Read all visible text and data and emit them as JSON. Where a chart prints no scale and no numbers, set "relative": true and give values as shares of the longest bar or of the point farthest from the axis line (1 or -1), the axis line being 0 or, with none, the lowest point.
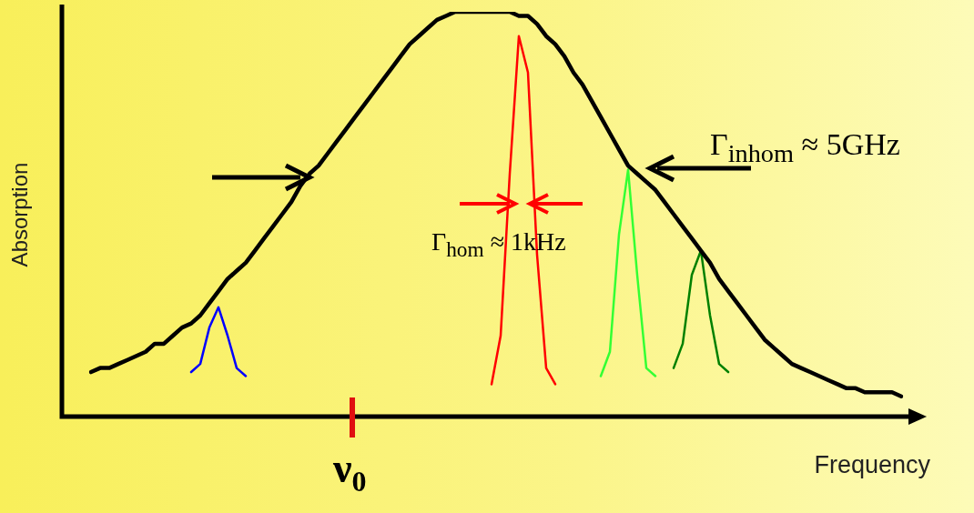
{
  "chart_data": {
    "type": "line",
    "relative": true,
    "xlabel": "Frequency",
    "ylabel": "Absorption",
    "categories": [
      null,
      null,
      null,
      null,
      null,
      null,
      null,
      null,
      null,
      null,
      null,
      null,
      null,
      null,
      null,
      null,
      null,
      null,
      null,
      null,
      null,
      null,
      null,
      null,
      null,
      null,
      null,
      null,
      null,
      null,
      null,
      null,
      null,
      null,
      null,
      null,
      null,
      null,
      null,
      null,
      null,
      null,
      null,
      null,
      null,
      null,
      null,
      null,
      null,
      null,
      null,
      null,
      null,
      null,
      null,
      null,
      null,
      null,
      null,
      null,
      null,
      null,
      null,
      null,
      null,
      null,
      null,
      null,
      null,
      null,
      null,
      null,
      null,
      null,
      null,
      null,
      null,
      null,
      null,
      null,
      null,
      null,
      null,
      null,
      null,
      null,
      null,
      null,
      null,
      null
    ],
    "series": [
      {
        "color": "#000000",
        "values": [
          0.11,
          0.12,
          0.12,
          0.13,
          0.14,
          0.15,
          0.16,
          0.18,
          0.18,
          0.2,
          0.22,
          0.23,
          0.25,
          0.28,
          0.31,
          0.34,
          0.36,
          0.38,
          0.41,
          0.44,
          0.47,
          0.5,
          0.53,
          0.57,
          0.6,
          0.62,
          0.65,
          0.68,
          0.71,
          0.74,
          0.77,
          0.8,
          0.83,
          0.86,
          0.89,
          0.92,
          0.94,
          0.96,
          0.98,
          0.99,
          1.0,
          1.0,
          1.0,
          1.0,
          1.0,
          1.0,
          1.0,
          0.99,
          0.99,
          0.97,
          0.94,
          0.92,
          0.89,
          0.85,
          0.82,
          0.78,
          0.74,
          0.7,
          0.66,
          0.62,
          0.6,
          0.58,
          0.56,
          0.53,
          0.5,
          0.47,
          0.44,
          0.41,
          0.38,
          0.34,
          0.31,
          0.28,
          0.25,
          0.22,
          0.19,
          0.17,
          0.15,
          0.13,
          0.12,
          0.11,
          0.1,
          0.09,
          0.08,
          0.07,
          0.07,
          0.06,
          0.06,
          0.06,
          0.06,
          0.05
        ]
      },
      {
        "color": "#0000ff",
        "values": [
          null,
          null,
          null,
          null,
          null,
          null,
          null,
          null,
          null,
          null,
          null,
          0.11,
          0.13,
          0.22,
          0.27,
          0.2,
          0.12,
          0.1,
          null,
          null,
          null,
          null,
          null,
          null,
          null,
          null,
          null,
          null,
          null,
          null,
          null,
          null,
          null,
          null,
          null,
          null,
          null,
          null,
          null,
          null,
          null,
          null,
          null,
          null,
          null,
          null,
          null,
          null,
          null,
          null,
          null,
          null,
          null,
          null,
          null,
          null,
          null,
          null,
          null,
          null,
          null,
          null,
          null,
          null,
          null,
          null,
          null,
          null,
          null,
          null,
          null,
          null,
          null,
          null,
          null,
          null,
          null,
          null,
          null,
          null,
          null,
          null,
          null,
          null,
          null,
          null,
          null,
          null,
          null,
          null
        ]
      },
      {
        "color": "#ff0000",
        "values": [
          null,
          null,
          null,
          null,
          null,
          null,
          null,
          null,
          null,
          null,
          null,
          null,
          null,
          null,
          null,
          null,
          null,
          null,
          null,
          null,
          null,
          null,
          null,
          null,
          null,
          null,
          null,
          null,
          null,
          null,
          null,
          null,
          null,
          null,
          null,
          null,
          null,
          null,
          null,
          null,
          null,
          null,
          null,
          null,
          0.08,
          0.2,
          0.6,
          0.94,
          0.85,
          0.4,
          0.12,
          0.08,
          null,
          null,
          null,
          null,
          null,
          null,
          null,
          null,
          null,
          null,
          null,
          null,
          null,
          null,
          null,
          null,
          null,
          null,
          null,
          null,
          null,
          null,
          null,
          null,
          null,
          null,
          null,
          null,
          null,
          null,
          null,
          null,
          null,
          null,
          null,
          null,
          null,
          null
        ]
      },
      {
        "color": "#33ff33",
        "values": [
          null,
          null,
          null,
          null,
          null,
          null,
          null,
          null,
          null,
          null,
          null,
          null,
          null,
          null,
          null,
          null,
          null,
          null,
          null,
          null,
          null,
          null,
          null,
          null,
          null,
          null,
          null,
          null,
          null,
          null,
          null,
          null,
          null,
          null,
          null,
          null,
          null,
          null,
          null,
          null,
          null,
          null,
          null,
          null,
          null,
          null,
          null,
          null,
          null,
          null,
          null,
          null,
          null,
          null,
          null,
          null,
          0.1,
          0.16,
          0.45,
          0.61,
          0.35,
          0.12,
          0.1,
          null,
          null,
          null,
          null,
          null,
          null,
          null,
          null,
          null,
          null,
          null,
          null,
          null,
          null,
          null,
          null,
          null,
          null,
          null,
          null,
          null,
          null,
          null,
          null,
          null,
          null,
          null
        ]
      },
      {
        "color": "#008000",
        "values": [
          null,
          null,
          null,
          null,
          null,
          null,
          null,
          null,
          null,
          null,
          null,
          null,
          null,
          null,
          null,
          null,
          null,
          null,
          null,
          null,
          null,
          null,
          null,
          null,
          null,
          null,
          null,
          null,
          null,
          null,
          null,
          null,
          null,
          null,
          null,
          null,
          null,
          null,
          null,
          null,
          null,
          null,
          null,
          null,
          null,
          null,
          null,
          null,
          null,
          null,
          null,
          null,
          null,
          null,
          null,
          null,
          null,
          null,
          null,
          null,
          null,
          null,
          null,
          null,
          0.12,
          0.18,
          0.35,
          0.41,
          0.25,
          0.13,
          0.11,
          null,
          null,
          null,
          null,
          null,
          null,
          null,
          null,
          null,
          null,
          null,
          null,
          null,
          null,
          null,
          null,
          null,
          null,
          null
        ]
      }
    ],
    "annotations": [
      "Γ$_{inhom}$ ≈ 5GHz",
      "Γ$_{hom}$ ≈ 1kHz",
      "ν$_{0}$"
    ]
  }
}
